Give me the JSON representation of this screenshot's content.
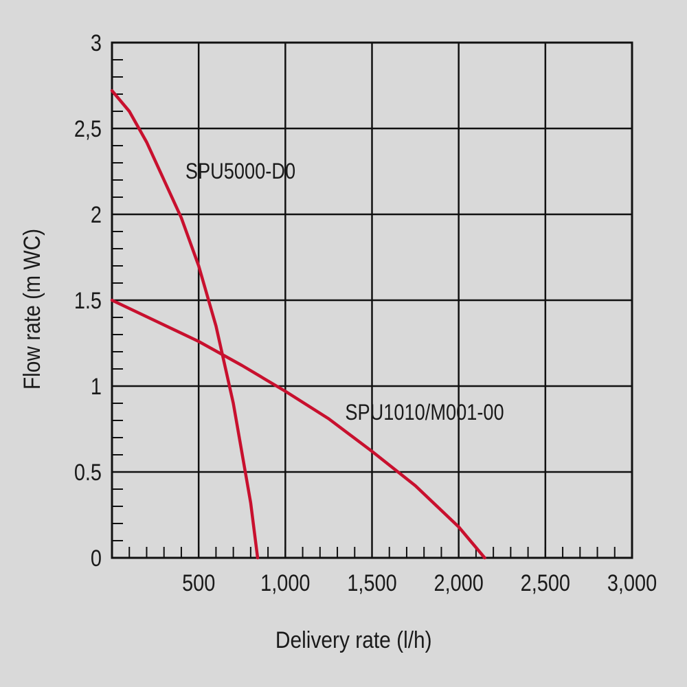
{
  "chart_data": {
    "type": "line",
    "xlabel": "Delivery rate (l/h)",
    "ylabel": "Flow rate  (m  WC)",
    "xlim": [
      0,
      3000
    ],
    "ylim": [
      0,
      3
    ],
    "grid": true,
    "x_ticks": [
      500,
      1000,
      1500,
      2000,
      2500,
      3000
    ],
    "x_tick_labels": [
      "500",
      "1,000",
      "1,500",
      "2,000",
      "2,500",
      "3,000"
    ],
    "y_ticks": [
      0,
      0.5,
      1,
      1.5,
      2,
      2.5,
      3
    ],
    "y_tick_labels": [
      "0",
      "0.5",
      "1",
      "1.5",
      "2",
      "2,5",
      "3"
    ],
    "line_color": "#c8102e",
    "background_color": "#d9d9d9",
    "series": [
      {
        "name": "SPU5000-D0",
        "x": [
          0,
          100,
          200,
          300,
          400,
          500,
          600,
          700,
          800,
          840
        ],
        "y": [
          2.72,
          2.6,
          2.42,
          2.2,
          1.98,
          1.7,
          1.35,
          0.9,
          0.32,
          0
        ]
      },
      {
        "name": "SPU1010/M001-00",
        "x": [
          0,
          250,
          500,
          750,
          1000,
          1250,
          1500,
          1750,
          2000,
          2150
        ],
        "y": [
          1.5,
          1.38,
          1.26,
          1.12,
          0.97,
          0.81,
          0.62,
          0.42,
          0.18,
          0
        ]
      }
    ]
  }
}
